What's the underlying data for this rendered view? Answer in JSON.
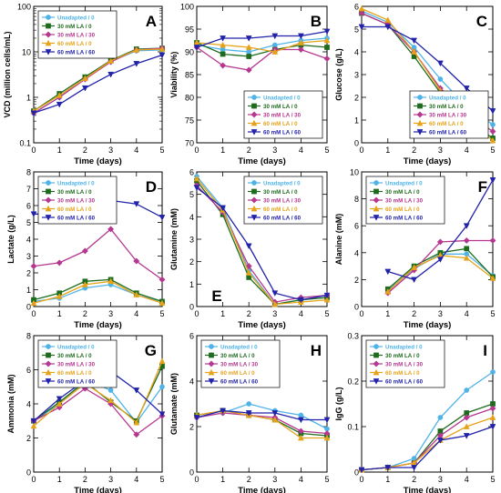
{
  "figure": {
    "series_colors": [
      "#4fb3e8",
      "#1e6b1e",
      "#b5378f",
      "#e6a31a",
      "#2222aa"
    ],
    "series_markers": [
      "circle",
      "square",
      "diamond",
      "triangle-up",
      "triangle-down"
    ]
  },
  "chart_data": [
    {
      "panel": "A",
      "type": "line",
      "ylabel": "VCD (million cells/mL)",
      "xlabel": "Time (days)",
      "yscale": "log",
      "ylim": [
        0.1,
        100
      ],
      "yticks": [
        0.1,
        1,
        10,
        100
      ],
      "yticklabels": [
        "0.1",
        "1",
        "10",
        "100"
      ],
      "xlim": [
        0,
        5
      ],
      "xticks": [
        0,
        1,
        2,
        3,
        4,
        5
      ],
      "legend_position": "top-left",
      "series": [
        {
          "name": "Unadapted / 0",
          "x": [
            0,
            1,
            2,
            3,
            4,
            5
          ],
          "y": [
            0.45,
            1.0,
            2.6,
            6.2,
            10.5,
            11.0
          ]
        },
        {
          "name": "30 mM LA / 0",
          "x": [
            0,
            1,
            2,
            3,
            4,
            5
          ],
          "y": [
            0.5,
            1.2,
            2.8,
            6.5,
            11.5,
            12.0
          ]
        },
        {
          "name": "30 mM LA / 30",
          "x": [
            0,
            1,
            2,
            3,
            4,
            5
          ],
          "y": [
            0.45,
            1.0,
            2.5,
            6.0,
            11.0,
            12.0
          ]
        },
        {
          "name": "60 mM LA / 0",
          "x": [
            0,
            1,
            2,
            3,
            4,
            5
          ],
          "y": [
            0.5,
            1.1,
            2.6,
            6.3,
            11.0,
            11.5
          ]
        },
        {
          "name": "60 mM LA / 60",
          "x": [
            0,
            1,
            2,
            3,
            4,
            5
          ],
          "y": [
            0.45,
            0.7,
            1.6,
            3.2,
            5.5,
            8.5
          ]
        }
      ]
    },
    {
      "panel": "B",
      "type": "line",
      "ylabel": "Viability (%)",
      "xlabel": "Time (days)",
      "ylim": [
        70,
        100
      ],
      "yticks": [
        70,
        75,
        80,
        85,
        90,
        95,
        100
      ],
      "xlim": [
        0,
        5
      ],
      "xticks": [
        0,
        1,
        2,
        3,
        4,
        5
      ],
      "legend_position": "bottom-right",
      "series": [
        {
          "name": "Unadapted / 0",
          "x": [
            0,
            1,
            2,
            3,
            4,
            5
          ],
          "y": [
            91.5,
            90.5,
            90.0,
            91.5,
            92.5,
            93.0
          ]
        },
        {
          "name": "30 mM LA / 0",
          "x": [
            0,
            1,
            2,
            3,
            4,
            5
          ],
          "y": [
            92.0,
            89.5,
            89.0,
            90.5,
            91.5,
            91.0
          ]
        },
        {
          "name": "30 mM LA / 30",
          "x": [
            0,
            1,
            2,
            3,
            4,
            5
          ],
          "y": [
            91.0,
            87.0,
            86.0,
            90.5,
            90.5,
            88.5
          ]
        },
        {
          "name": "60 mM LA / 0",
          "x": [
            0,
            1,
            2,
            3,
            4,
            5
          ],
          "y": [
            92.0,
            91.5,
            91.0,
            90.0,
            92.0,
            92.5
          ]
        },
        {
          "name": "60 mM LA / 60",
          "x": [
            0,
            1,
            2,
            3,
            4,
            5
          ],
          "y": [
            91.0,
            93.0,
            93.0,
            93.5,
            93.5,
            94.5
          ]
        }
      ]
    },
    {
      "panel": "C",
      "type": "line",
      "ylabel": "Glucose (g/L)",
      "xlabel": "Time (days)",
      "ylim": [
        0,
        6
      ],
      "yticks": [
        0,
        1,
        2,
        3,
        4,
        5,
        6
      ],
      "xlim": [
        0,
        5
      ],
      "xticks": [
        0,
        1,
        2,
        3,
        4,
        5
      ],
      "legend_position": "bottom-right",
      "series": [
        {
          "name": "Unadapted / 0",
          "x": [
            0,
            1,
            2,
            3,
            4,
            5
          ],
          "y": [
            5.8,
            5.3,
            4.2,
            2.8,
            1.6,
            0.8
          ]
        },
        {
          "name": "30 mM LA / 0",
          "x": [
            0,
            1,
            2,
            3,
            4,
            5
          ],
          "y": [
            5.7,
            5.2,
            3.8,
            2.2,
            1.0,
            0.2
          ]
        },
        {
          "name": "30 mM LA / 30",
          "x": [
            0,
            1,
            2,
            3,
            4,
            5
          ],
          "y": [
            5.7,
            5.2,
            4.0,
            2.4,
            1.3,
            0.5
          ]
        },
        {
          "name": "60 mM LA / 0",
          "x": [
            0,
            1,
            2,
            3,
            4,
            5
          ],
          "y": [
            5.9,
            5.4,
            4.0,
            2.3,
            1.0,
            0.1
          ]
        },
        {
          "name": "60 mM LA / 60",
          "x": [
            0,
            1,
            2,
            3,
            4,
            5
          ],
          "y": [
            5.1,
            5.1,
            4.5,
            3.5,
            2.4,
            1.4
          ]
        }
      ]
    },
    {
      "panel": "D",
      "type": "line",
      "ylabel": "Lactate (g/L)",
      "xlabel": "Time (days)",
      "ylim": [
        0,
        8
      ],
      "yticks": [
        0,
        1,
        2,
        3,
        4,
        5,
        6,
        7,
        8
      ],
      "xlim": [
        0,
        5
      ],
      "xticks": [
        0,
        1,
        2,
        3,
        4,
        5
      ],
      "legend_position": "top-left",
      "series": [
        {
          "name": "Unadapted / 0",
          "x": [
            0,
            1,
            2,
            3,
            4,
            5
          ],
          "y": [
            0.3,
            0.5,
            1.1,
            1.3,
            0.7,
            0.3
          ]
        },
        {
          "name": "30 mM LA / 0",
          "x": [
            0,
            1,
            2,
            3,
            4,
            5
          ],
          "y": [
            0.4,
            0.8,
            1.5,
            1.6,
            0.8,
            0.3
          ]
        },
        {
          "name": "30 mM LA / 30",
          "x": [
            0,
            1,
            2,
            3,
            4,
            5
          ],
          "y": [
            2.4,
            2.6,
            3.3,
            4.6,
            2.7,
            1.6
          ]
        },
        {
          "name": "60 mM LA / 0",
          "x": [
            0,
            1,
            2,
            3,
            4,
            5
          ],
          "y": [
            0.2,
            0.6,
            1.3,
            1.5,
            0.7,
            0.2
          ]
        },
        {
          "name": "60 mM LA / 60",
          "x": [
            0,
            1,
            2,
            3,
            4,
            5
          ],
          "y": [
            5.5,
            5.5,
            5.7,
            6.3,
            6.1,
            5.3
          ]
        }
      ]
    },
    {
      "panel": "E",
      "type": "line",
      "ylabel": "Glutamine (mM)",
      "xlabel": "Time (days)",
      "ylim": [
        0,
        6
      ],
      "yticks": [
        0,
        1,
        2,
        3,
        4,
        5,
        6
      ],
      "xlim": [
        0,
        5
      ],
      "xticks": [
        0,
        1,
        2,
        3,
        4,
        5
      ],
      "legend_position": "top-right",
      "series": [
        {
          "name": "Unadapted / 0",
          "x": [
            0,
            1,
            2,
            3,
            4,
            5
          ],
          "y": [
            5.8,
            4.4,
            1.6,
            0.1,
            0.3,
            0.4
          ]
        },
        {
          "name": "30 mM LA / 0",
          "x": [
            0,
            1,
            2,
            3,
            4,
            5
          ],
          "y": [
            5.6,
            4.1,
            1.3,
            0.1,
            0.3,
            0.4
          ]
        },
        {
          "name": "30 mM LA / 30",
          "x": [
            0,
            1,
            2,
            3,
            4,
            5
          ],
          "y": [
            5.4,
            4.2,
            1.8,
            0.2,
            0.4,
            0.5
          ]
        },
        {
          "name": "60 mM LA / 0",
          "x": [
            0,
            1,
            2,
            3,
            4,
            5
          ],
          "y": [
            5.7,
            4.3,
            1.5,
            0.1,
            0.2,
            0.3
          ]
        },
        {
          "name": "60 mM LA / 60",
          "x": [
            0,
            1,
            2,
            3,
            4,
            5
          ],
          "y": [
            5.3,
            4.4,
            2.7,
            0.6,
            0.3,
            0.5
          ]
        }
      ]
    },
    {
      "panel": "F",
      "type": "line",
      "ylabel": "Alanine (mM)",
      "xlabel": "Time (days)",
      "ylim": [
        0,
        10
      ],
      "yticks": [
        0,
        2,
        4,
        6,
        8,
        10
      ],
      "xlim": [
        0,
        5
      ],
      "xticks": [
        0,
        1,
        2,
        3,
        4,
        5
      ],
      "legend_position": "top-left",
      "series": [
        {
          "name": "Unadapted / 0",
          "x": [
            1,
            2,
            3,
            4,
            5
          ],
          "y": [
            1.2,
            2.8,
            3.9,
            3.9,
            2.3
          ]
        },
        {
          "name": "30 mM LA / 0",
          "x": [
            1,
            2,
            3,
            4,
            5
          ],
          "y": [
            1.3,
            3.0,
            4.0,
            4.3,
            2.2
          ]
        },
        {
          "name": "30 mM LA / 30",
          "x": [
            1,
            2,
            3,
            4,
            5
          ],
          "y": [
            1.0,
            2.7,
            4.8,
            4.9,
            4.9
          ]
        },
        {
          "name": "60 mM LA / 0",
          "x": [
            1,
            2,
            3,
            4,
            5
          ],
          "y": [
            1.1,
            2.9,
            3.8,
            3.6,
            2.1
          ]
        },
        {
          "name": "60 mM LA / 60",
          "x": [
            1,
            2,
            3,
            4,
            5
          ],
          "y": [
            2.6,
            2.0,
            3.5,
            6.0,
            9.4
          ]
        }
      ]
    },
    {
      "panel": "G",
      "type": "line",
      "ylabel": "Ammonia (mM)",
      "xlabel": "Time (days)",
      "ylim": [
        0,
        8
      ],
      "yticks": [
        0,
        2,
        4,
        6,
        8
      ],
      "xlim": [
        0,
        5
      ],
      "xticks": [
        0,
        1,
        2,
        3,
        4,
        5
      ],
      "legend_position": "top-left",
      "series": [
        {
          "name": "Unadapted / 0",
          "x": [
            0,
            1,
            2,
            3,
            4,
            5
          ],
          "y": [
            3.0,
            4.0,
            5.4,
            4.8,
            2.9,
            5.0
          ]
        },
        {
          "name": "30 mM LA / 0",
          "x": [
            0,
            1,
            2,
            3,
            4,
            5
          ],
          "y": [
            3.0,
            4.1,
            5.3,
            4.1,
            3.0,
            6.2
          ]
        },
        {
          "name": "30 mM LA / 30",
          "x": [
            0,
            1,
            2,
            3,
            4,
            5
          ],
          "y": [
            3.0,
            3.8,
            4.9,
            4.0,
            2.2,
            3.3
          ]
        },
        {
          "name": "60 mM LA / 0",
          "x": [
            0,
            1,
            2,
            3,
            4,
            5
          ],
          "y": [
            2.7,
            4.0,
            5.2,
            4.2,
            2.9,
            6.5
          ]
        },
        {
          "name": "60 mM LA / 60",
          "x": [
            0,
            1,
            2,
            3,
            4,
            5
          ],
          "y": [
            3.0,
            4.3,
            5.4,
            5.9,
            4.8,
            3.4
          ]
        }
      ]
    },
    {
      "panel": "H",
      "type": "line",
      "ylabel": "Glutamate (mM)",
      "xlabel": "Time (days)",
      "ylim": [
        0,
        6
      ],
      "yticks": [
        0,
        2,
        4,
        6
      ],
      "xlim": [
        0,
        5
      ],
      "xticks": [
        0,
        1,
        2,
        3,
        4,
        5
      ],
      "legend_position": "top-left",
      "series": [
        {
          "name": "Unadapted / 0",
          "x": [
            0,
            1,
            2,
            3,
            4,
            5
          ],
          "y": [
            2.4,
            2.6,
            3.0,
            2.7,
            2.5,
            1.9
          ]
        },
        {
          "name": "30 mM LA / 0",
          "x": [
            0,
            1,
            2,
            3,
            4,
            5
          ],
          "y": [
            2.5,
            2.7,
            2.5,
            2.3,
            1.7,
            1.6
          ]
        },
        {
          "name": "30 mM LA / 30",
          "x": [
            0,
            1,
            2,
            3,
            4,
            5
          ],
          "y": [
            2.4,
            2.6,
            2.5,
            2.4,
            1.8,
            1.7
          ]
        },
        {
          "name": "60 mM LA / 0",
          "x": [
            0,
            1,
            2,
            3,
            4,
            5
          ],
          "y": [
            2.5,
            2.7,
            2.5,
            2.3,
            1.5,
            1.5
          ]
        },
        {
          "name": "60 mM LA / 60",
          "x": [
            0,
            1,
            2,
            3,
            4,
            5
          ],
          "y": [
            2.4,
            2.7,
            2.6,
            2.6,
            2.3,
            2.3
          ]
        }
      ]
    },
    {
      "panel": "I",
      "type": "line",
      "ylabel": "IgG (g/L)",
      "xlabel": "Time (days)",
      "ylim": [
        0,
        0.3
      ],
      "yticks": [
        0,
        0.1,
        0.2,
        0.3
      ],
      "yticklabels": [
        "0",
        "0.1",
        "0.2",
        "0.3"
      ],
      "xlim": [
        0,
        5
      ],
      "xticks": [
        0,
        1,
        2,
        3,
        4,
        5
      ],
      "legend_position": "top-left",
      "series": [
        {
          "name": "Unadapted / 0",
          "x": [
            0,
            1,
            2,
            3,
            4,
            5
          ],
          "y": [
            0.005,
            0.01,
            0.03,
            0.12,
            0.18,
            0.22
          ]
        },
        {
          "name": "30 mM LA / 0",
          "x": [
            0,
            1,
            2,
            3,
            4,
            5
          ],
          "y": [
            0.005,
            0.01,
            0.02,
            0.09,
            0.13,
            0.15
          ]
        },
        {
          "name": "30 mM LA / 30",
          "x": [
            0,
            1,
            2,
            3,
            4,
            5
          ],
          "y": [
            0.005,
            0.01,
            0.02,
            0.08,
            0.12,
            0.14
          ]
        },
        {
          "name": "60 mM LA / 0",
          "x": [
            0,
            1,
            2,
            3,
            4,
            5
          ],
          "y": [
            0.005,
            0.01,
            0.02,
            0.07,
            0.1,
            0.12
          ]
        },
        {
          "name": "60 mM LA / 60",
          "x": [
            0,
            1,
            2,
            3,
            4,
            5
          ],
          "y": [
            0.005,
            0.01,
            0.01,
            0.07,
            0.08,
            0.1
          ]
        }
      ]
    }
  ]
}
